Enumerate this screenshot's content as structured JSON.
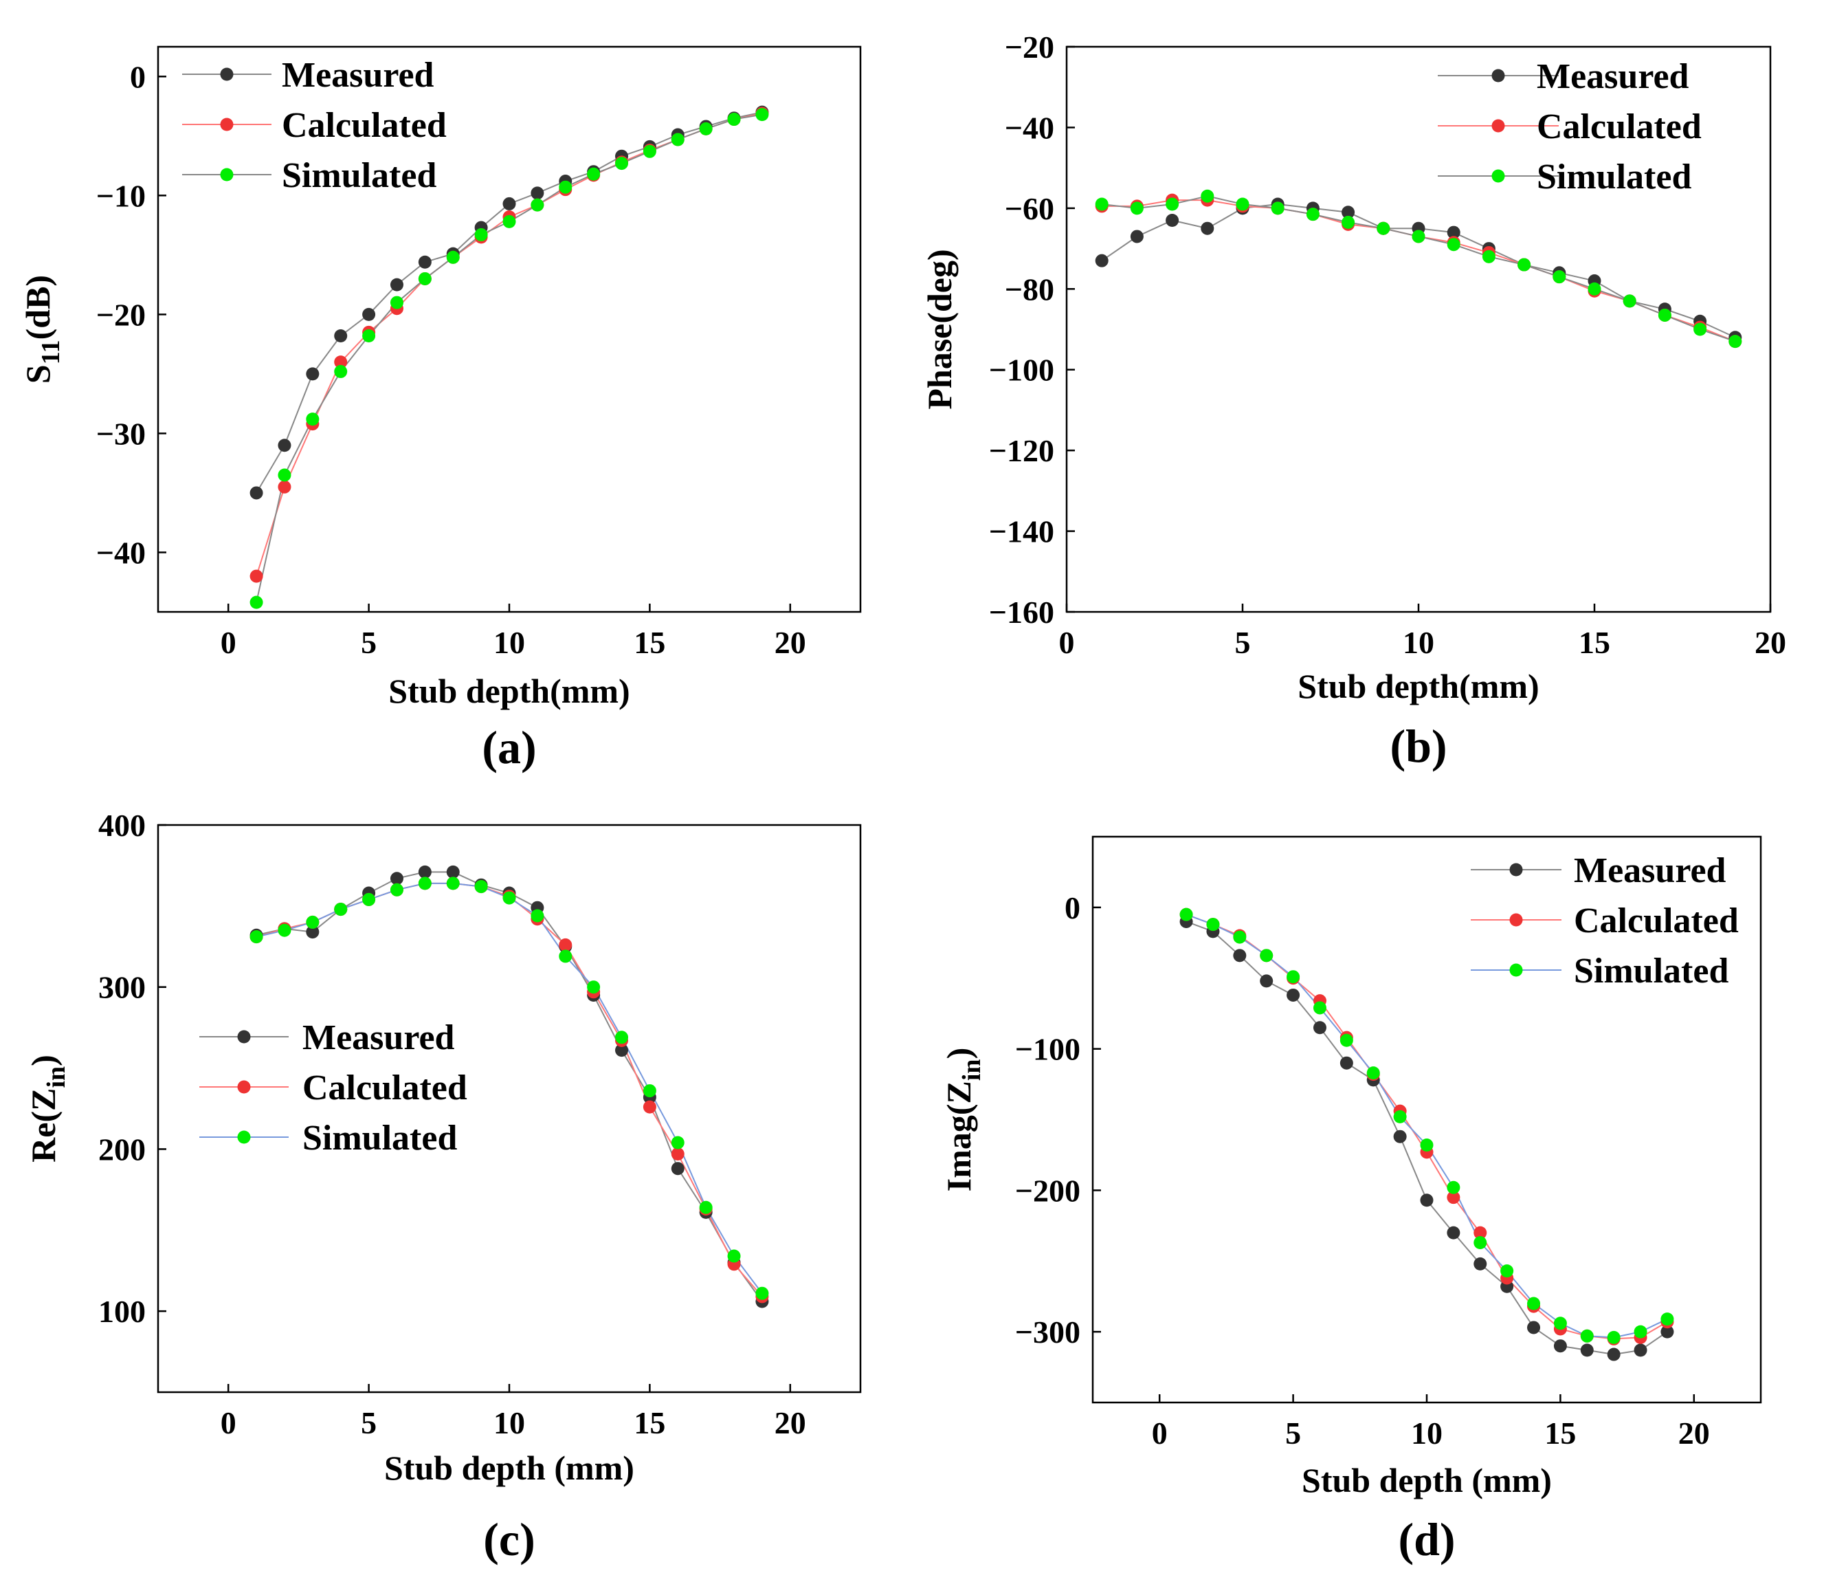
{
  "colors": {
    "measured": "#333333",
    "calculated": "#ee3333",
    "simulated": "#00ee00",
    "line_measured": "#888888",
    "line_calculated": "#ff7777",
    "line_simulated": "#7799dd",
    "line_simulated_ab": "#888888"
  },
  "chart_data": [
    {
      "id": "a",
      "type": "line",
      "panel_label": "(a)",
      "title": "",
      "xlabel": "Stub depth(mm)",
      "ylabel": "S11(dB)",
      "ylabel_main": "S",
      "ylabel_sub": "11",
      "ylabel_rest": "(dB)",
      "xlim": [
        -2.5,
        22.5
      ],
      "ylim": [
        -45,
        2.5
      ],
      "xticks": [
        0,
        5,
        10,
        15,
        20
      ],
      "yticks": [
        0,
        -10,
        -20,
        -30,
        -40
      ],
      "xtick_labels": [
        "0",
        "5",
        "10",
        "15",
        "20"
      ],
      "ytick_labels": [
        "0",
        "−10",
        "−20",
        "−30",
        "−40"
      ],
      "legend_position": "top-left",
      "x": [
        1,
        2,
        3,
        4,
        5,
        6,
        7,
        8,
        9,
        10,
        11,
        12,
        13,
        14,
        15,
        16,
        17,
        18,
        19
      ],
      "series": [
        {
          "name": "Measured",
          "values": [
            -35,
            -31,
            -25,
            -21.8,
            -20,
            -17.5,
            -15.6,
            -14.9,
            -12.7,
            -10.7,
            -9.8,
            -8.8,
            -8,
            -6.7,
            -5.9,
            -4.9,
            -4.2,
            -3.5,
            -3
          ]
        },
        {
          "name": "Calculated",
          "values": [
            -42,
            -34.5,
            -29.2,
            -24,
            -21.5,
            -19.5,
            -17,
            -15.2,
            -13.5,
            -11.8,
            -10.8,
            -9.5,
            -8.3,
            -7.2,
            -6.2,
            -5.3,
            -4.4,
            -3.6,
            -3.1
          ]
        },
        {
          "name": "Simulated",
          "values": [
            -44.2,
            -33.5,
            -28.8,
            -24.8,
            -21.8,
            -19,
            -17,
            -15.2,
            -13.3,
            -12.2,
            -10.8,
            -9.3,
            -8.2,
            -7.3,
            -6.3,
            -5.3,
            -4.4,
            -3.6,
            -3.2
          ]
        }
      ]
    },
    {
      "id": "b",
      "type": "line",
      "panel_label": "(b)",
      "title": "",
      "xlabel": "Stub depth(mm)",
      "ylabel": "Phase(deg)",
      "xlim": [
        0,
        20
      ],
      "ylim": [
        -160,
        -20
      ],
      "xticks": [
        0,
        5,
        10,
        15,
        20
      ],
      "yticks": [
        -20,
        -40,
        -60,
        -80,
        -100,
        -120,
        -140,
        -160
      ],
      "xtick_labels": [
        "0",
        "5",
        "10",
        "15",
        "20"
      ],
      "ytick_labels": [
        "−20",
        "−40",
        "−60",
        "−80",
        "−100",
        "−120",
        "−140",
        "−160"
      ],
      "legend_position": "top-right",
      "x": [
        1,
        2,
        3,
        4,
        5,
        6,
        7,
        8,
        9,
        10,
        11,
        12,
        13,
        14,
        15,
        16,
        17,
        18,
        19
      ],
      "series": [
        {
          "name": "Measured",
          "values": [
            -73,
            -67,
            -63,
            -65,
            -60,
            -59,
            -60,
            -61,
            -65,
            -65,
            -66,
            -70,
            -74,
            -76,
            -78,
            -83,
            -85,
            -88,
            -92
          ]
        },
        {
          "name": "Calculated",
          "values": [
            -59.5,
            -59.5,
            -58,
            -58,
            -59.5,
            -60,
            -61.5,
            -64,
            -65,
            -67,
            -68.5,
            -71,
            -74,
            -77,
            -80.5,
            -83,
            -86.5,
            -89.5,
            -93
          ]
        },
        {
          "name": "Simulated",
          "values": [
            -59,
            -60,
            -59,
            -57,
            -59,
            -60,
            -61.5,
            -63.5,
            -65,
            -67,
            -69,
            -72,
            -74,
            -77,
            -80,
            -83,
            -86.5,
            -90,
            -93
          ]
        }
      ]
    },
    {
      "id": "c",
      "type": "line",
      "panel_label": "(c)",
      "title": "",
      "xlabel": "Stub depth (mm)",
      "ylabel": "Re(Zin)",
      "ylabel_main": "Re(Z",
      "ylabel_sub": "in",
      "ylabel_rest": ")",
      "xlim": [
        -2.5,
        22.5
      ],
      "ylim": [
        50,
        400
      ],
      "xticks": [
        0,
        5,
        10,
        15,
        20
      ],
      "yticks": [
        100,
        200,
        300,
        400
      ],
      "xtick_labels": [
        "0",
        "5",
        "10",
        "15",
        "20"
      ],
      "ytick_labels": [
        "100",
        "200",
        "300",
        "400"
      ],
      "legend_position": "middle-left",
      "x": [
        1,
        2,
        3,
        4,
        5,
        6,
        7,
        8,
        9,
        10,
        11,
        12,
        13,
        14,
        15,
        16,
        17,
        18,
        19
      ],
      "series": [
        {
          "name": "Measured",
          "values": [
            332,
            336,
            334,
            348,
            358,
            367,
            371,
            371,
            363,
            358,
            349,
            325,
            295,
            261,
            232,
            188,
            161,
            130,
            106
          ]
        },
        {
          "name": "Calculated",
          "values": [
            331,
            336,
            340,
            348,
            354,
            360,
            364,
            364,
            362,
            356,
            342,
            326,
            297,
            267,
            226,
            197,
            163,
            129,
            109
          ]
        },
        {
          "name": "Simulated",
          "values": [
            331,
            335,
            340,
            348,
            354,
            360,
            364,
            364,
            362,
            355,
            344,
            319,
            300,
            269,
            236,
            204,
            164,
            134,
            111
          ]
        }
      ]
    },
    {
      "id": "d",
      "type": "line",
      "panel_label": "(d)",
      "title": "",
      "xlabel": "Stub depth (mm)",
      "ylabel": "Imag(Zin)",
      "ylabel_main": "Imag(Z",
      "ylabel_sub": "in",
      "ylabel_rest": ")",
      "xlim": [
        -2.5,
        22.5
      ],
      "ylim": [
        -350,
        50
      ],
      "xticks": [
        0,
        5,
        10,
        15,
        20
      ],
      "yticks": [
        0,
        -100,
        -200,
        -300
      ],
      "xtick_labels": [
        "0",
        "5",
        "10",
        "15",
        "20"
      ],
      "ytick_labels": [
        "0",
        "−100",
        "−200",
        "−300"
      ],
      "legend_position": "top-right",
      "x": [
        1,
        2,
        3,
        4,
        5,
        6,
        7,
        8,
        9,
        10,
        11,
        12,
        13,
        14,
        15,
        16,
        17,
        18,
        19
      ],
      "series": [
        {
          "name": "Measured",
          "values": [
            -10,
            -17,
            -34,
            -52,
            -62,
            -85,
            -110,
            -122,
            -162,
            -207,
            -230,
            -252,
            -268,
            -297,
            -310,
            -313,
            -316,
            -313,
            -300
          ]
        },
        {
          "name": "Calculated",
          "values": [
            -5,
            -12,
            -20,
            -34,
            -50,
            -66,
            -92,
            -118,
            -144,
            -173,
            -205,
            -230,
            -262,
            -282,
            -298,
            -303,
            -305,
            -304,
            -293
          ]
        },
        {
          "name": "Simulated",
          "values": [
            -5,
            -12,
            -21,
            -34,
            -49,
            -71,
            -94,
            -117,
            -148,
            -168,
            -198,
            -237,
            -257,
            -280,
            -294,
            -303,
            -304,
            -300,
            -291
          ]
        }
      ]
    }
  ]
}
